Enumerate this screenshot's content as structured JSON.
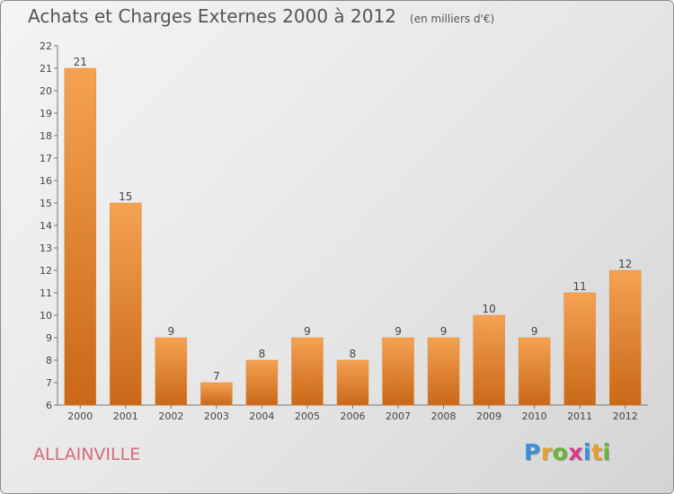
{
  "chart_data": {
    "type": "bar",
    "title": "Achats et Charges Externes 2000 à 2012",
    "unit": "(en milliers d'€)",
    "categories": [
      "2000",
      "2001",
      "2002",
      "2003",
      "2004",
      "2005",
      "2006",
      "2007",
      "2008",
      "2009",
      "2010",
      "2011",
      "2012"
    ],
    "values": [
      21,
      15,
      9,
      7,
      8,
      9,
      8,
      9,
      9,
      10,
      9,
      11,
      12
    ],
    "ylim": [
      6,
      22
    ],
    "yticks": [
      6,
      7,
      8,
      9,
      10,
      11,
      12,
      13,
      14,
      15,
      16,
      17,
      18,
      19,
      20,
      21,
      22
    ],
    "grid": false,
    "bar_color": "#f0913a",
    "bar_color_dark": "#c96818"
  },
  "commune": "ALLAINVILLE",
  "logo": {
    "letters": [
      "P",
      "r",
      "o",
      "x",
      "i",
      "t",
      "i"
    ],
    "colors": [
      "#3b8fd9",
      "#e8a02a",
      "#6bb33a",
      "#d93a8a",
      "#3b8fd9",
      "#e8a02a",
      "#6bb33a"
    ]
  }
}
